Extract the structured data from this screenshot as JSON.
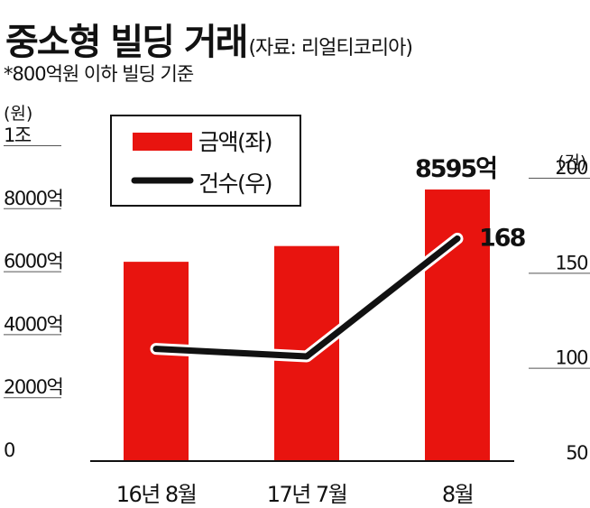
{
  "header": {
    "title": "중소형 빌딩 거래",
    "source": "(자료: 리얼티코리아)",
    "note": "*800억원 이하 빌딩 기준"
  },
  "colors": {
    "bar": "#e8140f",
    "line": "#111111",
    "grid": "#555555"
  },
  "chart_data": {
    "type": "bar",
    "categories": [
      "16년 8월",
      "17년 7월",
      "8월"
    ],
    "series": [
      {
        "name": "금액(좌)",
        "type": "bar",
        "axis": "left",
        "values": [
          6300,
          6800,
          8595
        ]
      },
      {
        "name": "건수(우)",
        "type": "line",
        "axis": "right",
        "values": [
          110,
          106,
          168
        ]
      }
    ],
    "left_axis": {
      "unit": "(원)",
      "range": [
        0,
        10000
      ],
      "ticks": [
        {
          "value": 0,
          "label": "0"
        },
        {
          "value": 2000,
          "label": "2000억"
        },
        {
          "value": 4000,
          "label": "4000억"
        },
        {
          "value": 6000,
          "label": "6000억"
        },
        {
          "value": 8000,
          "label": "8000억"
        },
        {
          "value": 10000,
          "label": "1조"
        }
      ]
    },
    "right_axis": {
      "unit": "(건)",
      "range": [
        50,
        200
      ],
      "ticks": [
        {
          "value": 50,
          "label": "50"
        },
        {
          "value": 100,
          "label": "100"
        },
        {
          "value": 150,
          "label": "150"
        },
        {
          "value": 200,
          "label": "200"
        }
      ]
    },
    "data_labels": [
      {
        "series": 0,
        "index": 2,
        "text": "8595억"
      },
      {
        "series": 1,
        "index": 2,
        "text": "168"
      }
    ],
    "legend_position": "top-left",
    "grid": false
  }
}
